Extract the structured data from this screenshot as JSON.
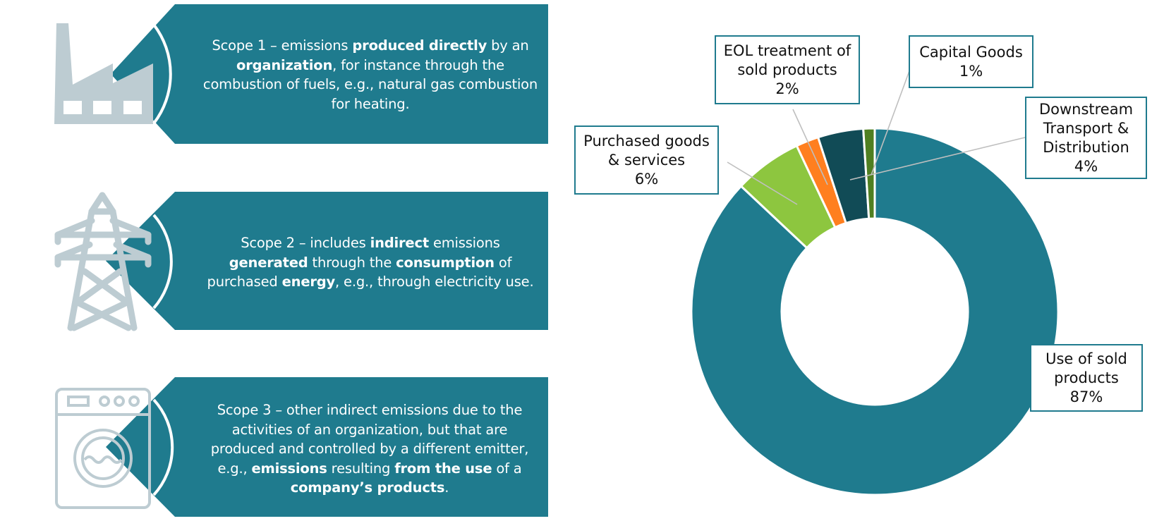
{
  "colors": {
    "panel_teal": "#1F7B8E",
    "icon_gray": "#BDCCD2",
    "label_border": "#1F7B8E",
    "leader_line": "#BFBFBF"
  },
  "scopes": [
    {
      "icon": "factory-icon",
      "segments": [
        {
          "t": "Scope 1 – emissions ",
          "b": false
        },
        {
          "t": "produced directly",
          "b": true
        },
        {
          "t": " by an ",
          "b": false
        },
        {
          "t": "organization",
          "b": true
        },
        {
          "t": ", for instance through the combustion of fuels, e.g., natural gas combustion for heating.",
          "b": false
        }
      ]
    },
    {
      "icon": "power-pylon-icon",
      "segments": [
        {
          "t": "Scope 2 – includes ",
          "b": false
        },
        {
          "t": "indirect",
          "b": true
        },
        {
          "t": " emissions ",
          "b": false
        },
        {
          "t": "generated",
          "b": true
        },
        {
          "t": " through the ",
          "b": false
        },
        {
          "t": "consumption",
          "b": true
        },
        {
          "t": " of purchased ",
          "b": false
        },
        {
          "t": "energy",
          "b": true
        },
        {
          "t": ",  e.g., through electricity use.",
          "b": false
        }
      ]
    },
    {
      "icon": "washing-machine-icon",
      "segments": [
        {
          "t": "Scope 3 – other indirect emissions due to the activities of an organization, but that are produced and controlled by a different emitter, e.g., ",
          "b": false
        },
        {
          "t": "emissions",
          "b": true
        },
        {
          "t": " resulting ",
          "b": false
        },
        {
          "t": "from the use",
          "b": true
        },
        {
          "t": " of a ",
          "b": false
        },
        {
          "t": "company’s products",
          "b": true
        },
        {
          "t": ".",
          "b": false
        }
      ]
    }
  ],
  "chart_data": {
    "type": "pie",
    "subtype": "donut",
    "title": "",
    "categories": [
      "Use of sold products",
      "Purchased goods & services",
      "EOL treatment of sold products",
      "Downstream Transport & Distribution",
      "Capital Goods"
    ],
    "values": [
      87,
      6,
      2,
      4,
      1
    ],
    "labels": [
      "87%",
      "6%",
      "2%",
      "4%",
      "1%"
    ],
    "colors": [
      "#1F7B8E",
      "#8DC63F",
      "#FF7F1F",
      "#114B56",
      "#4F7F21"
    ],
    "order_clockwise_from_top": [
      "Use of sold products",
      "Purchased goods & services",
      "EOL treatment of sold products",
      "Downstream Transport & Distribution",
      "Capital Goods"
    ],
    "legend": "none (callout data labels)",
    "label_lines": [
      [
        "Use of sold",
        "products",
        "87%"
      ],
      [
        "Purchased goods",
        "& services",
        "6%"
      ],
      [
        "EOL treatment of",
        "sold products",
        "2%"
      ],
      [
        "Downstream",
        "Transport &",
        "Distribution",
        "4%"
      ],
      [
        "Capital Goods",
        "1%"
      ]
    ]
  }
}
